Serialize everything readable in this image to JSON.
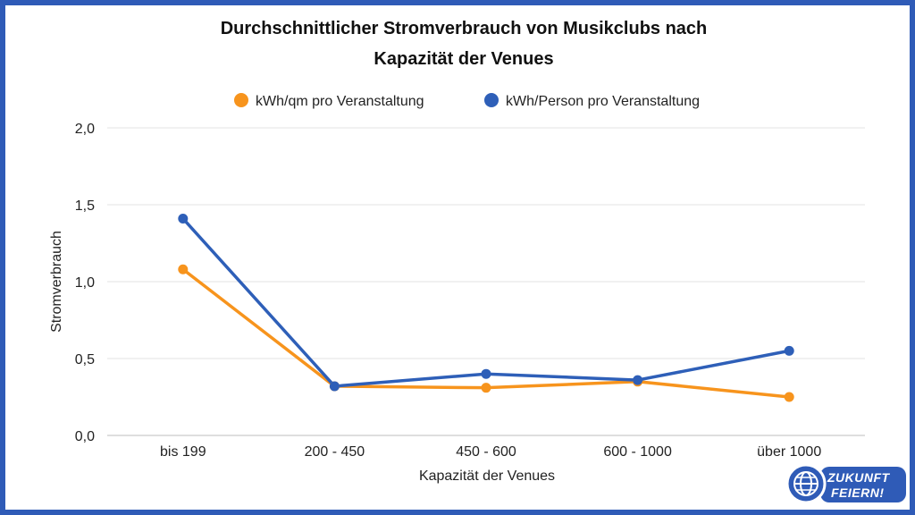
{
  "chart_data": {
    "type": "line",
    "title_lines": [
      "Durchschnittlicher Stromverbrauch von Musikclubs nach",
      "Kapazität der Venues"
    ],
    "xlabel": "Kapazität der Venues",
    "ylabel": "Stromverbrauch",
    "categories": [
      "bis 199",
      "200 - 450",
      "450 - 600",
      "600 - 1000",
      "über 1000"
    ],
    "ylim": [
      0,
      2
    ],
    "yticks": [
      0,
      0.5,
      1,
      1.5,
      2
    ],
    "ytick_labels": [
      "0,0",
      "0,5",
      "1,0",
      "1,5",
      "2,0"
    ],
    "grid": true,
    "legend_position": "top-center",
    "series": [
      {
        "name": "kWh/qm pro Veranstaltung",
        "color": "#f7941d",
        "values": [
          1.08,
          0.32,
          0.31,
          0.35,
          0.25
        ]
      },
      {
        "name": "kWh/Person pro Veranstaltung",
        "color": "#2e5fb8",
        "values": [
          1.41,
          0.32,
          0.4,
          0.36,
          0.55
        ]
      }
    ]
  },
  "logo": {
    "line1": "ZUKUNFT",
    "line2": "FEIERN!",
    "icon": "globe-icon",
    "color": "#2f5bb7"
  }
}
